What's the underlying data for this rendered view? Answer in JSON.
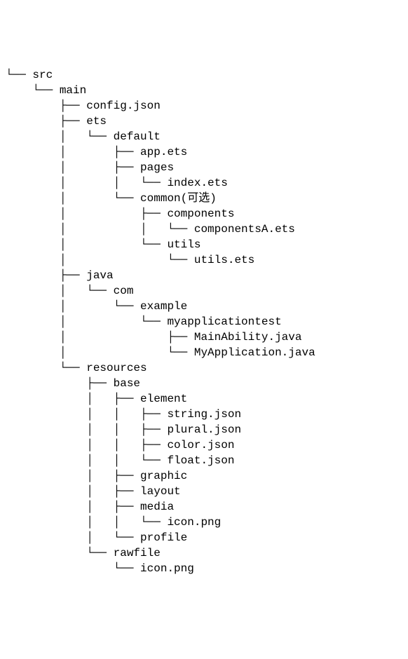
{
  "tree": {
    "type": "tree",
    "font_family": "Courier New",
    "font_size": 16,
    "line_height": 22,
    "text_color": "#000000",
    "background_color": "#ffffff",
    "connector_chars": {
      "last": "└── ",
      "mid": "├── ",
      "pipe": "│   ",
      "blank": "    "
    },
    "lines": [
      {
        "prefix": "└── ",
        "label": "src"
      },
      {
        "prefix": "    └── ",
        "label": "main"
      },
      {
        "prefix": "        ├── ",
        "label": "config.json"
      },
      {
        "prefix": "        ├── ",
        "label": "ets"
      },
      {
        "prefix": "        │   └── ",
        "label": "default"
      },
      {
        "prefix": "        │       ├── ",
        "label": "app.ets"
      },
      {
        "prefix": "        │       ├── ",
        "label": "pages"
      },
      {
        "prefix": "        │       │   └── ",
        "label": "index.ets"
      },
      {
        "prefix": "        │       └── ",
        "label": "common(可选)"
      },
      {
        "prefix": "        │           ├── ",
        "label": "components"
      },
      {
        "prefix": "        │           │   └── ",
        "label": "componentsA.ets"
      },
      {
        "prefix": "        │           └── ",
        "label": "utils"
      },
      {
        "prefix": "        │               └── ",
        "label": "utils.ets"
      },
      {
        "prefix": "        ├── ",
        "label": "java"
      },
      {
        "prefix": "        │   └── ",
        "label": "com"
      },
      {
        "prefix": "        │       └── ",
        "label": "example"
      },
      {
        "prefix": "        │           └── ",
        "label": "myapplicationtest"
      },
      {
        "prefix": "        │               ├── ",
        "label": "MainAbility.java"
      },
      {
        "prefix": "        │               └── ",
        "label": "MyApplication.java"
      },
      {
        "prefix": "        └── ",
        "label": "resources"
      },
      {
        "prefix": "            ├── ",
        "label": "base"
      },
      {
        "prefix": "            │   ├── ",
        "label": "element"
      },
      {
        "prefix": "            │   │   ├── ",
        "label": "string.json"
      },
      {
        "prefix": "            │   │   ├── ",
        "label": "plural.json"
      },
      {
        "prefix": "            │   │   ├── ",
        "label": "color.json"
      },
      {
        "prefix": "            │   │   └── ",
        "label": "float.json"
      },
      {
        "prefix": "            │   ├── ",
        "label": "graphic"
      },
      {
        "prefix": "            │   ├── ",
        "label": "layout"
      },
      {
        "prefix": "            │   ├── ",
        "label": "media"
      },
      {
        "prefix": "            │   │   └── ",
        "label": "icon.png"
      },
      {
        "prefix": "            │   └── ",
        "label": "profile"
      },
      {
        "prefix": "            └── ",
        "label": "rawfile"
      },
      {
        "prefix": "                └── ",
        "label": "icon.png"
      }
    ]
  }
}
